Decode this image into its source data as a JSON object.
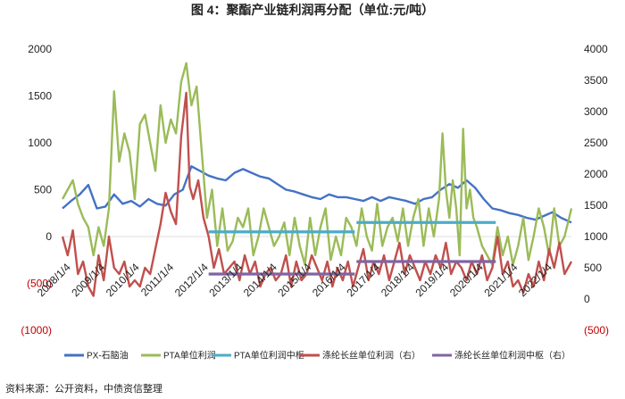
{
  "title": "图 4：聚酯产业链利润再分配（单位:元/吨）",
  "source": "资料来源：公开资料，中债资信整理",
  "chart_data": {
    "type": "line",
    "title": "图 4：聚酯产业链利润再分配（单位:元/吨）",
    "x_ticks": [
      "2008/1/4",
      "2009/1/4",
      "2010/1/4",
      "2011/1/4",
      "2012/1/4",
      "2013/1/4",
      "2014/1/4",
      "2015/1/4",
      "2016/1/4",
      "2017/1/4",
      "2018/1/4",
      "2019/1/4",
      "2020/1/4",
      "2021/1/4",
      "2022/1/4"
    ],
    "x_start": 2007.75,
    "x_end": 2022.55,
    "y_left": {
      "min": -1000,
      "max": 2000,
      "step": 500,
      "tick_labels": [
        "(1000)",
        "(500)",
        "0",
        "500",
        "1000",
        "1500",
        "2000"
      ]
    },
    "y_right": {
      "min": -500,
      "max": 4000,
      "step": 500,
      "tick_labels": [
        "(500)",
        "0",
        "500",
        "1000",
        "1500",
        "2000",
        "2500",
        "3000",
        "3500",
        "4000"
      ]
    },
    "grid": false,
    "legend_position": "bottom",
    "colors": {
      "px": "#4472c4",
      "pta": "#9bbb59",
      "pta_mid": "#4bacc6",
      "polyester": "#c0504d",
      "polyester_mid": "#8064a2",
      "neg_label": "#c00000"
    },
    "series": [
      {
        "name": "PX-石脑油",
        "axis": "left",
        "style": "line",
        "x": [
          2007.75,
          2008.0,
          2008.25,
          2008.5,
          2008.75,
          2009.0,
          2009.25,
          2009.5,
          2009.75,
          2010.0,
          2010.25,
          2010.5,
          2010.75,
          2011.0,
          2011.25,
          2011.5,
          2011.75,
          2012.0,
          2012.25,
          2012.5,
          2012.75,
          2013.0,
          2013.25,
          2013.5,
          2013.75,
          2014.0,
          2014.25,
          2014.5,
          2014.75,
          2015.0,
          2015.25,
          2015.5,
          2015.75,
          2016.0,
          2016.25,
          2016.5,
          2016.75,
          2017.0,
          2017.25,
          2017.5,
          2017.75,
          2018.0,
          2018.25,
          2018.5,
          2018.75,
          2019.0,
          2019.25,
          2019.5,
          2019.75,
          2020.0,
          2020.25,
          2020.5,
          2020.75,
          2021.0,
          2021.25,
          2021.5,
          2021.75,
          2022.0,
          2022.25,
          2022.55
        ],
        "y": [
          300,
          380,
          450,
          550,
          300,
          320,
          450,
          350,
          380,
          320,
          400,
          350,
          330,
          450,
          500,
          750,
          700,
          650,
          620,
          600,
          680,
          720,
          680,
          640,
          620,
          560,
          500,
          480,
          450,
          420,
          400,
          450,
          420,
          420,
          400,
          380,
          420,
          380,
          420,
          400,
          380,
          350,
          400,
          420,
          500,
          560,
          520,
          600,
          520,
          400,
          300,
          280,
          250,
          230,
          200,
          180,
          220,
          260,
          200,
          150
        ]
      },
      {
        "name": "PTA单位利润",
        "axis": "left",
        "style": "line",
        "x": [
          2007.75,
          2007.9,
          2008.05,
          2008.2,
          2008.35,
          2008.5,
          2008.65,
          2008.8,
          2008.95,
          2009.1,
          2009.25,
          2009.4,
          2009.55,
          2009.7,
          2009.85,
          2010.0,
          2010.15,
          2010.3,
          2010.45,
          2010.6,
          2010.75,
          2010.9,
          2011.05,
          2011.2,
          2011.35,
          2011.5,
          2011.65,
          2011.8,
          2011.95,
          2012.1,
          2012.25,
          2012.4,
          2012.55,
          2012.7,
          2012.85,
          2013.0,
          2013.15,
          2013.3,
          2013.45,
          2013.6,
          2013.75,
          2013.9,
          2014.05,
          2014.2,
          2014.35,
          2014.5,
          2014.65,
          2014.8,
          2014.95,
          2015.1,
          2015.25,
          2015.4,
          2015.55,
          2015.7,
          2015.85,
          2016.0,
          2016.15,
          2016.3,
          2016.45,
          2016.6,
          2016.75,
          2016.9,
          2017.05,
          2017.2,
          2017.35,
          2017.5,
          2017.65,
          2017.8,
          2017.95,
          2018.1,
          2018.25,
          2018.4,
          2018.55,
          2018.7,
          2018.8,
          2018.9,
          2019.0,
          2019.1,
          2019.2,
          2019.3,
          2019.4,
          2019.5,
          2019.6,
          2019.7,
          2019.8,
          2019.95,
          2020.1,
          2020.25,
          2020.4,
          2020.55,
          2020.7,
          2020.85,
          2021.0,
          2021.15,
          2021.3,
          2021.45,
          2021.6,
          2021.75,
          2021.9,
          2022.05,
          2022.2,
          2022.35,
          2022.55
        ],
        "y": [
          400,
          500,
          600,
          350,
          200,
          100,
          -200,
          100,
          -100,
          300,
          1550,
          800,
          1100,
          900,
          400,
          1200,
          1300,
          1000,
          700,
          1400,
          1000,
          1250,
          1100,
          1650,
          1850,
          1400,
          1600,
          900,
          200,
          500,
          -100,
          300,
          -150,
          -50,
          200,
          100,
          300,
          -200,
          0,
          300,
          100,
          -100,
          0,
          150,
          -200,
          200,
          -100,
          -300,
          200,
          -200,
          100,
          300,
          -250,
          0,
          -200,
          200,
          100,
          -100,
          300,
          0,
          -150,
          350,
          -100,
          100,
          200,
          -50,
          300,
          -100,
          200,
          400,
          -100,
          300,
          0,
          400,
          1100,
          500,
          200,
          600,
          300,
          -200,
          1150,
          300,
          500,
          200,
          100,
          -100,
          -200,
          -300,
          100,
          -200,
          0,
          -300,
          -100,
          200,
          -250,
          0,
          300,
          100,
          -200,
          300,
          -100,
          0,
          300
        ]
      },
      {
        "name": "PTA单位利润中枢",
        "axis": "left",
        "style": "hline",
        "segments": [
          {
            "x0": 2012.0,
            "x1": 2016.25,
            "y": 50
          },
          {
            "x0": 2016.3,
            "x1": 2020.35,
            "y": 150
          }
        ]
      },
      {
        "name": "涤纶长丝单位利润（右）",
        "axis": "right",
        "style": "line",
        "x": [
          2007.75,
          2007.9,
          2008.05,
          2008.2,
          2008.35,
          2008.5,
          2008.65,
          2008.8,
          2008.95,
          2009.1,
          2009.25,
          2009.4,
          2009.55,
          2009.7,
          2009.85,
          2010.0,
          2010.15,
          2010.3,
          2010.45,
          2010.6,
          2010.75,
          2010.9,
          2011.05,
          2011.2,
          2011.35,
          2011.45,
          2011.55,
          2011.7,
          2011.85,
          2012.0,
          2012.15,
          2012.3,
          2012.45,
          2012.6,
          2012.75,
          2012.9,
          2013.05,
          2013.2,
          2013.35,
          2013.5,
          2013.65,
          2013.8,
          2013.95,
          2014.1,
          2014.25,
          2014.4,
          2014.55,
          2014.7,
          2014.85,
          2015.0,
          2015.15,
          2015.3,
          2015.45,
          2015.6,
          2015.75,
          2015.9,
          2016.05,
          2016.2,
          2016.35,
          2016.5,
          2016.65,
          2016.8,
          2016.95,
          2017.1,
          2017.25,
          2017.4,
          2017.55,
          2017.7,
          2017.85,
          2018.0,
          2018.15,
          2018.3,
          2018.45,
          2018.6,
          2018.75,
          2018.9,
          2019.05,
          2019.2,
          2019.35,
          2019.5,
          2019.65,
          2019.8,
          2019.95,
          2020.1,
          2020.25,
          2020.4,
          2020.55,
          2020.7,
          2020.85,
          2021.0,
          2021.15,
          2021.3,
          2021.45,
          2021.6,
          2021.75,
          2021.9,
          2022.05,
          2022.2,
          2022.35,
          2022.55
        ],
        "y": [
          1000,
          700,
          1100,
          400,
          600,
          200,
          50,
          700,
          300,
          1000,
          500,
          400,
          600,
          200,
          300,
          200,
          500,
          400,
          800,
          1200,
          1700,
          1400,
          1200,
          2600,
          3300,
          1800,
          1600,
          1900,
          1300,
          1000,
          500,
          800,
          400,
          500,
          600,
          300,
          700,
          400,
          600,
          200,
          400,
          500,
          300,
          400,
          700,
          200,
          600,
          300,
          400,
          700,
          500,
          300,
          600,
          200,
          500,
          300,
          600,
          200,
          500,
          800,
          300,
          600,
          400,
          700,
          300,
          600,
          900,
          400,
          700,
          500,
          300,
          600,
          400,
          700,
          500,
          900,
          400,
          600,
          500,
          300,
          600,
          400,
          700,
          300,
          500,
          1000,
          400,
          600,
          200,
          300,
          100,
          400,
          200,
          600,
          300,
          800,
          500,
          900,
          400,
          600
        ]
      },
      {
        "name": "涤纶长丝单位利润中枢（右）",
        "axis": "right",
        "style": "hline",
        "segments": [
          {
            "x0": 2012.0,
            "x1": 2016.25,
            "y": 400
          },
          {
            "x0": 2016.3,
            "x1": 2020.35,
            "y": 600
          }
        ]
      }
    ]
  }
}
